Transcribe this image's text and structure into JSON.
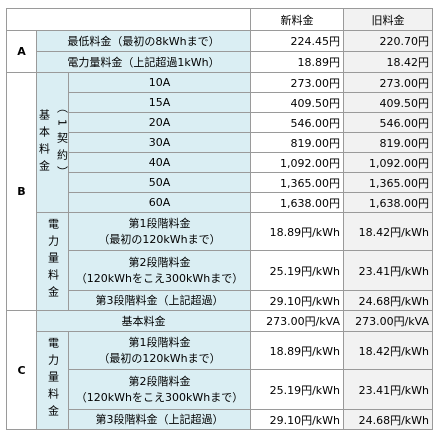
{
  "table": {
    "header": {
      "new": "新料金",
      "old": "旧料金"
    },
    "a": {
      "label": "A",
      "rows": [
        {
          "label": "最低料金（最初の8kWhまで）",
          "new": "224.45円",
          "old": "220.70円"
        },
        {
          "label": "電力量料金（上記超過1kWh）",
          "new": "18.89円",
          "old": "18.42円"
        }
      ]
    },
    "b": {
      "label": "B",
      "basic": {
        "lines": [
          "基本料金",
          "（1契約）"
        ],
        "rows": [
          {
            "label": "10A",
            "new": "273.00円",
            "old": "273.00円"
          },
          {
            "label": "15A",
            "new": "409.50円",
            "old": "409.50円"
          },
          {
            "label": "20A",
            "new": "546.00円",
            "old": "546.00円"
          },
          {
            "label": "30A",
            "new": "819.00円",
            "old": "819.00円"
          },
          {
            "label": "40A",
            "new": "1,092.00円",
            "old": "1,092.00円"
          },
          {
            "label": "50A",
            "new": "1,365.00円",
            "old": "1,365.00円"
          },
          {
            "label": "60A",
            "new": "1,638.00円",
            "old": "1,638.00円"
          }
        ]
      },
      "energy": {
        "label": "電力量料金",
        "rows": [
          {
            "lines": [
              "第1段階料金",
              "（最初の120kWhまで）"
            ],
            "new": "18.89円/kWh",
            "old": "18.42円/kWh"
          },
          {
            "lines": [
              "第2段階料金",
              "（120kWhをこえ300kWhまで）"
            ],
            "new": "25.19円/kWh",
            "old": "23.41円/kWh"
          },
          {
            "lines": [
              "第3段階料金（上記超過）"
            ],
            "new": "29.10円/kWh",
            "old": "24.68円/kWh"
          }
        ]
      }
    },
    "c": {
      "label": "C",
      "basic": {
        "label": "基本料金",
        "new": "273.00円/kVA",
        "old": "273.00円/kVA"
      },
      "energy": {
        "label": "電力量料金",
        "rows": [
          {
            "lines": [
              "第1段階料金",
              "（最初の120kWhまで）"
            ],
            "new": "18.89円/kWh",
            "old": "18.42円/kWh"
          },
          {
            "lines": [
              "第2段階料金",
              "（120kWhをこえ300kWhまで）"
            ],
            "new": "25.19円/kWh",
            "old": "23.41円/kWh"
          },
          {
            "lines": [
              "第3段階料金（上記超過）"
            ],
            "new": "29.10円/kWh",
            "old": "24.68円/kWh"
          }
        ]
      }
    }
  }
}
